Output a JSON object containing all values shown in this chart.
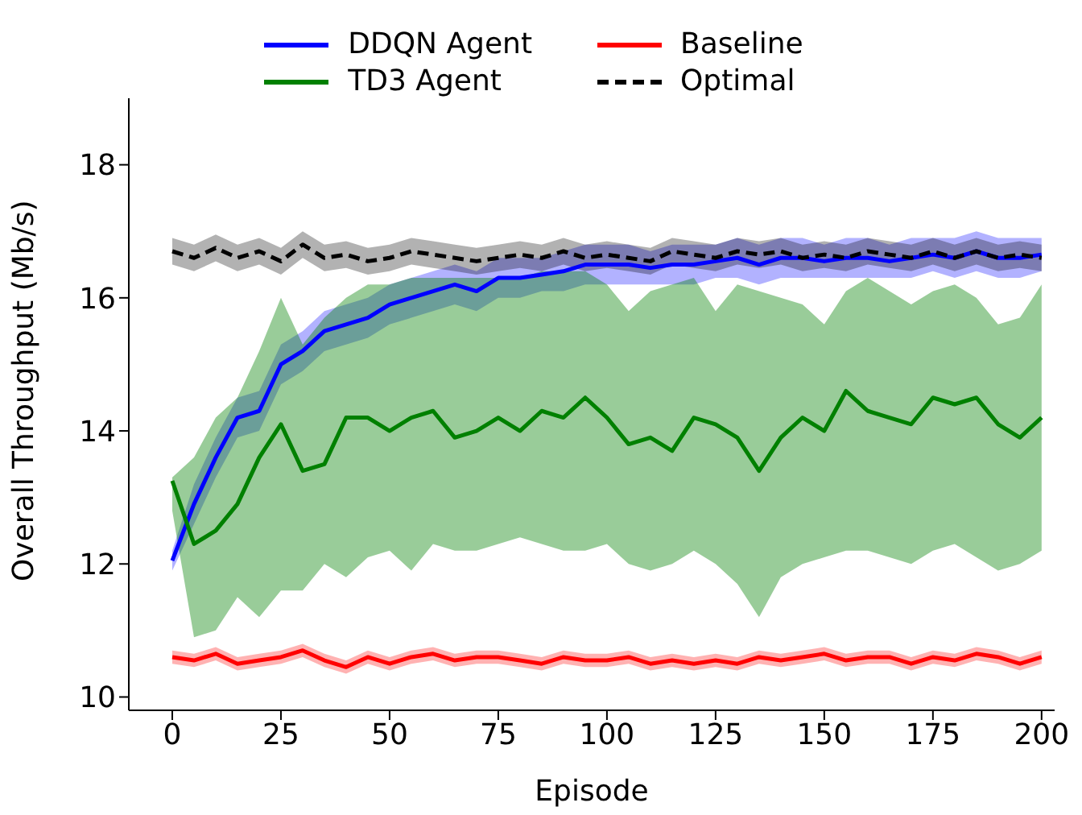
{
  "chart_data": {
    "type": "line",
    "xlabel": "Episode",
    "ylabel": "Overall Throughput (Mb/s)",
    "x": [
      0,
      5,
      10,
      15,
      20,
      25,
      30,
      35,
      40,
      45,
      50,
      55,
      60,
      65,
      70,
      75,
      80,
      85,
      90,
      95,
      100,
      105,
      110,
      115,
      120,
      125,
      130,
      135,
      140,
      145,
      150,
      155,
      160,
      165,
      170,
      175,
      180,
      185,
      190,
      195,
      200
    ],
    "xlim": [
      -10,
      203
    ],
    "xticks": [
      0,
      25,
      50,
      75,
      100,
      125,
      150,
      175,
      200
    ],
    "ylim": [
      9.8,
      19
    ],
    "yticks": [
      10,
      12,
      14,
      16,
      18
    ],
    "grid": false,
    "legend": "top",
    "marker": "none",
    "series": [
      {
        "name": "DDQN Agent",
        "color": "#0000ff",
        "line_style": "solid",
        "values": [
          12.05,
          12.9,
          13.6,
          14.2,
          14.3,
          15.0,
          15.2,
          15.5,
          15.6,
          15.7,
          15.9,
          16.0,
          16.1,
          16.2,
          16.1,
          16.3,
          16.3,
          16.35,
          16.4,
          16.5,
          16.5,
          16.5,
          16.45,
          16.5,
          16.5,
          16.55,
          16.6,
          16.5,
          16.6,
          16.6,
          16.55,
          16.6,
          16.6,
          16.55,
          16.6,
          16.65,
          16.6,
          16.7,
          16.6,
          16.6,
          16.65
        ],
        "lower": [
          11.9,
          12.6,
          13.3,
          13.9,
          14.0,
          14.7,
          14.9,
          15.2,
          15.3,
          15.4,
          15.6,
          15.7,
          15.8,
          15.9,
          15.8,
          16.0,
          16.0,
          16.1,
          16.1,
          16.2,
          16.2,
          16.2,
          16.2,
          16.2,
          16.2,
          16.3,
          16.3,
          16.2,
          16.3,
          16.3,
          16.3,
          16.3,
          16.3,
          16.3,
          16.3,
          16.4,
          16.3,
          16.4,
          16.3,
          16.3,
          16.4
        ],
        "upper": [
          12.2,
          13.2,
          13.9,
          14.5,
          14.6,
          15.3,
          15.5,
          15.8,
          15.9,
          16.0,
          16.2,
          16.3,
          16.4,
          16.5,
          16.4,
          16.6,
          16.6,
          16.6,
          16.7,
          16.8,
          16.8,
          16.8,
          16.7,
          16.8,
          16.8,
          16.8,
          16.9,
          16.8,
          16.9,
          16.9,
          16.8,
          16.9,
          16.9,
          16.8,
          16.9,
          16.9,
          16.9,
          17.0,
          16.9,
          16.9,
          16.9
        ]
      },
      {
        "name": "TD3 Agent",
        "color": "#008000",
        "line_style": "solid",
        "values": [
          13.25,
          12.3,
          12.5,
          12.9,
          13.6,
          14.1,
          13.4,
          13.5,
          14.2,
          14.2,
          14.0,
          14.2,
          14.3,
          13.9,
          14.0,
          14.2,
          14.0,
          14.3,
          14.2,
          14.5,
          14.2,
          13.8,
          13.9,
          13.7,
          14.2,
          14.1,
          13.9,
          13.4,
          13.9,
          14.2,
          14.0,
          14.6,
          14.3,
          14.2,
          14.1,
          14.5,
          14.4,
          14.5,
          14.1,
          13.9,
          14.2
        ],
        "lower": [
          12.8,
          10.9,
          11.0,
          11.5,
          11.2,
          11.6,
          11.6,
          12.0,
          11.8,
          12.1,
          12.2,
          11.9,
          12.3,
          12.2,
          12.2,
          12.3,
          12.4,
          12.3,
          12.2,
          12.2,
          12.3,
          12.0,
          11.9,
          12.0,
          12.2,
          12.0,
          11.7,
          11.2,
          11.8,
          12.0,
          12.1,
          12.2,
          12.2,
          12.1,
          12.0,
          12.2,
          12.3,
          12.1,
          11.9,
          12.0,
          12.2
        ],
        "upper": [
          13.3,
          13.6,
          14.2,
          14.5,
          15.2,
          16.0,
          15.3,
          15.7,
          16.0,
          16.2,
          16.2,
          16.3,
          16.3,
          16.3,
          16.3,
          16.3,
          16.3,
          16.4,
          16.4,
          16.4,
          16.2,
          15.8,
          16.1,
          16.2,
          16.3,
          15.8,
          16.2,
          16.1,
          16.0,
          15.9,
          15.6,
          16.1,
          16.3,
          16.1,
          15.9,
          16.1,
          16.2,
          16.0,
          15.6,
          15.7,
          16.2
        ]
      },
      {
        "name": "Baseline",
        "color": "#ff0000",
        "line_style": "solid",
        "values": [
          10.6,
          10.55,
          10.65,
          10.5,
          10.55,
          10.6,
          10.7,
          10.55,
          10.45,
          10.6,
          10.5,
          10.6,
          10.65,
          10.55,
          10.6,
          10.6,
          10.55,
          10.5,
          10.6,
          10.55,
          10.55,
          10.6,
          10.5,
          10.55,
          10.5,
          10.55,
          10.5,
          10.6,
          10.55,
          10.6,
          10.65,
          10.55,
          10.6,
          10.6,
          10.5,
          10.6,
          10.55,
          10.65,
          10.6,
          10.5,
          10.6
        ],
        "lower": [
          10.5,
          10.45,
          10.55,
          10.4,
          10.45,
          10.5,
          10.6,
          10.45,
          10.35,
          10.5,
          10.4,
          10.5,
          10.55,
          10.45,
          10.5,
          10.5,
          10.45,
          10.4,
          10.5,
          10.45,
          10.45,
          10.5,
          10.4,
          10.45,
          10.4,
          10.45,
          10.4,
          10.5,
          10.45,
          10.5,
          10.55,
          10.45,
          10.5,
          10.5,
          10.4,
          10.5,
          10.45,
          10.55,
          10.5,
          10.4,
          10.5
        ],
        "upper": [
          10.7,
          10.65,
          10.75,
          10.6,
          10.65,
          10.7,
          10.8,
          10.65,
          10.55,
          10.7,
          10.6,
          10.7,
          10.75,
          10.65,
          10.7,
          10.7,
          10.65,
          10.6,
          10.7,
          10.65,
          10.65,
          10.7,
          10.6,
          10.65,
          10.6,
          10.65,
          10.6,
          10.7,
          10.65,
          10.7,
          10.75,
          10.65,
          10.7,
          10.7,
          10.6,
          10.7,
          10.65,
          10.75,
          10.7,
          10.6,
          10.7
        ]
      },
      {
        "name": "Optimal",
        "color": "#000000",
        "line_style": "dashed",
        "values": [
          16.7,
          16.6,
          16.75,
          16.6,
          16.7,
          16.55,
          16.8,
          16.6,
          16.65,
          16.55,
          16.6,
          16.7,
          16.65,
          16.6,
          16.55,
          16.6,
          16.65,
          16.6,
          16.7,
          16.6,
          16.65,
          16.6,
          16.55,
          16.7,
          16.65,
          16.6,
          16.7,
          16.65,
          16.7,
          16.6,
          16.65,
          16.6,
          16.7,
          16.65,
          16.6,
          16.7,
          16.6,
          16.7,
          16.6,
          16.65,
          16.6
        ],
        "lower": [
          16.5,
          16.4,
          16.55,
          16.4,
          16.5,
          16.35,
          16.6,
          16.4,
          16.45,
          16.35,
          16.4,
          16.5,
          16.45,
          16.4,
          16.35,
          16.4,
          16.45,
          16.4,
          16.5,
          16.4,
          16.45,
          16.4,
          16.35,
          16.5,
          16.45,
          16.4,
          16.5,
          16.45,
          16.5,
          16.4,
          16.45,
          16.4,
          16.5,
          16.45,
          16.4,
          16.5,
          16.4,
          16.5,
          16.4,
          16.45,
          16.4
        ],
        "upper": [
          16.9,
          16.8,
          16.95,
          16.8,
          16.9,
          16.75,
          17.0,
          16.8,
          16.85,
          16.75,
          16.8,
          16.9,
          16.85,
          16.8,
          16.75,
          16.8,
          16.85,
          16.8,
          16.9,
          16.8,
          16.85,
          16.8,
          16.75,
          16.9,
          16.85,
          16.8,
          16.9,
          16.85,
          16.9,
          16.8,
          16.85,
          16.8,
          16.9,
          16.85,
          16.8,
          16.9,
          16.8,
          16.9,
          16.8,
          16.85,
          16.8
        ]
      }
    ]
  }
}
